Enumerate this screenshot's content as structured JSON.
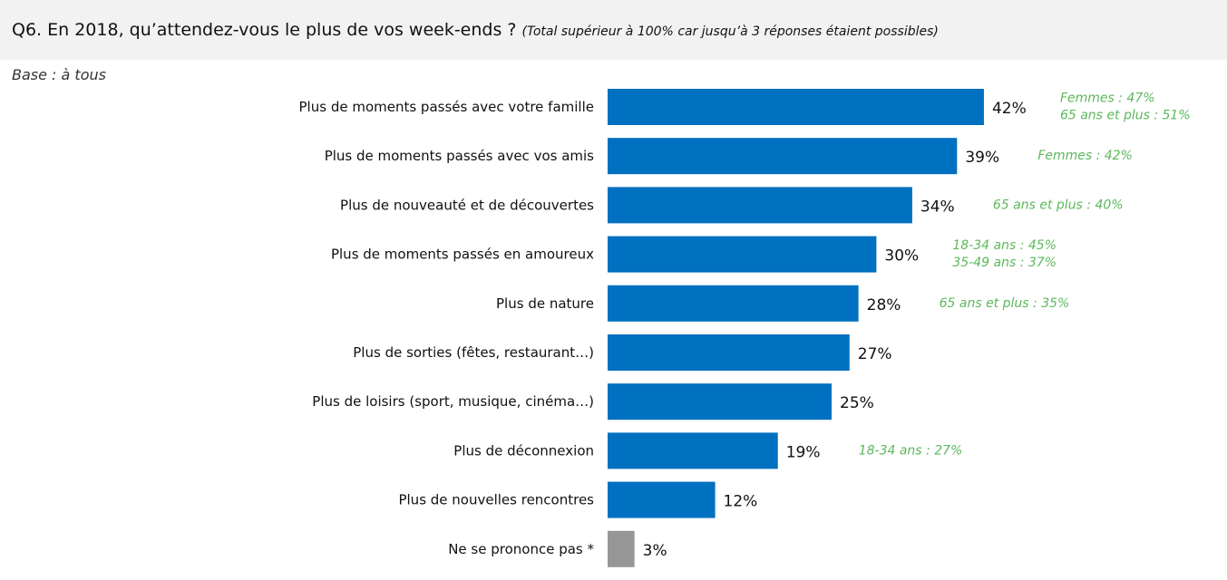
{
  "header": {
    "question": "Q6. En 2018, qu’attendez-vous le plus de vos week-ends ?",
    "note": "(Total supérieur à 100% car jusqu’à 3 réponses étaient possibles)",
    "base": "Base : à tous"
  },
  "colors": {
    "bar": "#0070c0",
    "bar_muted": "#969696",
    "annotation": "#5cb85c"
  },
  "chart_data": {
    "type": "bar",
    "orientation": "horizontal",
    "unit": "%",
    "categories": [
      "Plus de moments passés avec votre famille",
      "Plus de moments passés avec vos amis",
      "Plus de nouveauté et de découvertes",
      "Plus de moments passés en amoureux",
      "Plus de nature",
      "Plus de sorties (fêtes, restaurant…)",
      "Plus de loisirs (sport, musique, cinéma…)",
      "Plus de déconnexion",
      "Plus de nouvelles rencontres",
      "Ne se prononce pas *"
    ],
    "values": [
      42,
      39,
      34,
      30,
      28,
      27,
      25,
      19,
      12,
      3
    ],
    "value_labels": [
      "42%",
      "39%",
      "34%",
      "30%",
      "28%",
      "27%",
      "25%",
      "19%",
      "12%",
      "3%"
    ],
    "muted_categories": [
      "Ne se prononce pas *"
    ],
    "annotations": [
      [
        "Femmes : 47%",
        "65 ans et plus : 51%"
      ],
      [
        "Femmes : 42%"
      ],
      [
        "65 ans et plus : 40%"
      ],
      [
        "18-34 ans : 45%",
        "35-49 ans : 37%"
      ],
      [
        "65 ans et plus : 35%"
      ],
      [],
      [],
      [
        "18-34 ans : 27%"
      ],
      [],
      []
    ]
  }
}
